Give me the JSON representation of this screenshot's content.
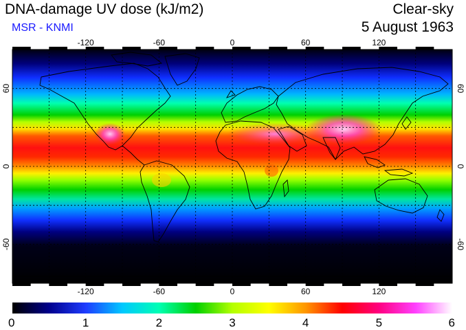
{
  "header": {
    "title": "DNA-damage UV dose (kJ/m2)",
    "subtitle": "MSR - KNMI",
    "condition": "Clear-sky",
    "date": "5 August 1963"
  },
  "map": {
    "projection": "equirectangular",
    "lon_ticks": [
      "-120",
      "-60",
      "0",
      "60",
      "120"
    ],
    "lat_ticks": [
      "60",
      "0",
      "-60"
    ],
    "grid": "dotted, every 30 degrees",
    "lon_range": [
      -180,
      180
    ],
    "lat_range": [
      -90,
      90
    ]
  },
  "colorbar": {
    "labels": [
      "0",
      "1",
      "2",
      "3",
      "4",
      "5",
      "6"
    ],
    "range": [
      0,
      6
    ],
    "colors": [
      "#000000",
      "#00008c",
      "#1e3cff",
      "#00c8ff",
      "#00ffb4",
      "#00d000",
      "#b4ff00",
      "#ffff00",
      "#ff9600",
      "#ff0000",
      "#ff0080",
      "#ff40ff",
      "#ffffff"
    ]
  }
}
